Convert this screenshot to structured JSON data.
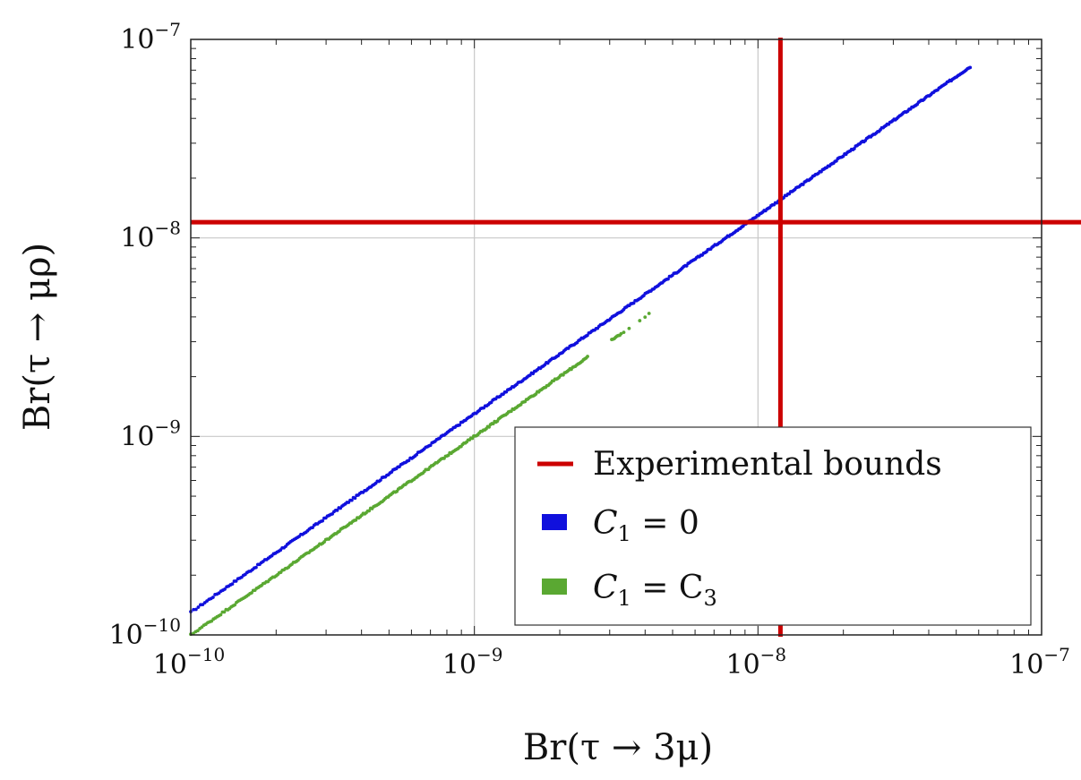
{
  "chart_data": {
    "type": "scatter",
    "log_x": true,
    "log_y": true,
    "xlim": [
      1e-10,
      1e-07
    ],
    "ylim": [
      1e-10,
      1e-07
    ],
    "xlabel": "Br(τ → 3μ)",
    "ylabel": "Br(τ → μρ)",
    "x_ticks": [
      {
        "base": "10",
        "exp": "−10"
      },
      {
        "base": "10",
        "exp": "−9"
      },
      {
        "base": "10",
        "exp": "−8"
      },
      {
        "base": "10",
        "exp": "−7"
      }
    ],
    "y_ticks": [
      {
        "base": "10",
        "exp": "−10"
      },
      {
        "base": "10",
        "exp": "−9"
      },
      {
        "base": "10",
        "exp": "−8"
      },
      {
        "base": "10",
        "exp": "−7"
      }
    ],
    "grid": "major",
    "experimental_bounds": {
      "x": 1.2e-08,
      "y": 1.2e-08,
      "color": "#cc0000"
    },
    "series": [
      {
        "name": "C1 = 0",
        "color": "#1010dd",
        "ratio_y_over_x": 1.3,
        "x_range": [
          1e-10,
          5.6e-08
        ]
      },
      {
        "name": "C1 = C3",
        "color": "#5aa832",
        "ratio_y_over_x": 1.0,
        "x_range": [
          1e-10,
          4.5e-09
        ]
      }
    ],
    "legend": {
      "position": "bottom-right",
      "entries": [
        {
          "label": "Experimental bounds",
          "color": "#cc0000",
          "symbol": "line"
        },
        {
          "label_main": "C",
          "label_sub": "1",
          "label_rest": " = 0",
          "color": "#1010dd",
          "symbol": "square"
        },
        {
          "label_main": "C",
          "label_sub": "1",
          "label_rest": " = C",
          "label_sub2": "3",
          "color": "#5aa832",
          "symbol": "square"
        }
      ]
    }
  }
}
